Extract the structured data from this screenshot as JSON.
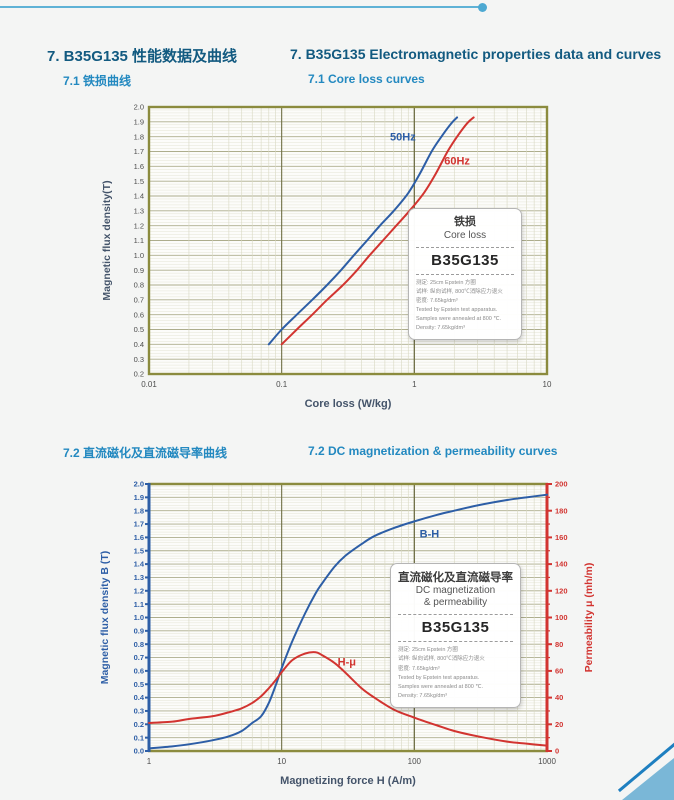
{
  "header": {
    "title_zh": "7. B35G135 性能数据及曲线",
    "title_en": "7. B35G135 Electromagnetic properties data and curves"
  },
  "section1": {
    "heading_zh": "7.1 铁损曲线",
    "heading_en": "7.1 Core loss curves"
  },
  "section2": {
    "heading_zh": "7.2 直流磁化及直流磁导率曲线",
    "heading_en": "7.2 DC magnetization & permeability curves"
  },
  "legend1": {
    "title_zh": "铁损",
    "title_en": "Core loss",
    "grade": "B35G135",
    "notes": [
      "测定: 25cm Epstein 方圈",
      "试样: 纵向试样, 800℃消除应力退火",
      "密度: 7.65kg/dm³",
      "Tested by Epstein test apparatus.",
      "Samples were annealed at 800 ℃.",
      "Density: 7.65kg/dm³"
    ]
  },
  "legend2": {
    "title_zh": "直流磁化及直流磁导率",
    "title_en1": "DC magnetization",
    "title_en2": "& permeability",
    "grade": "B35G135",
    "notes": [
      "测定: 25cm Epstein 方圈",
      "试样: 纵向试样, 800℃消除应力退火",
      "密度: 7.65kg/dm³",
      "Tested by Epstein test apparatus.",
      "Samples were annealed at 800 ℃.",
      "Density: 7.65kg/dm³"
    ]
  },
  "colors": {
    "accent_line": "#5fb2d6",
    "heading_dark": "#125a80",
    "heading_light": "#2389c0",
    "grid_border": "#8b8b3e",
    "blue_curve": "#2d5ea6",
    "red_curve": "#d23430",
    "axis_title_slate": "#44546a"
  },
  "chart_data": [
    {
      "type": "line",
      "title": "7.1 Core loss curves",
      "xlabel": "Core loss (W/kg)",
      "ylabel": "Magnetic flux density(T)",
      "x_scale": "log",
      "xlim": [
        0.01,
        10
      ],
      "x_ticks": [
        0.01,
        0.1,
        1,
        10
      ],
      "ylim": [
        0.2,
        2.0
      ],
      "y_tick_step": 0.1,
      "grid": true,
      "legend_position": "inside-right",
      "series": [
        {
          "name": "50Hz",
          "color": "#2d5ea6",
          "label_pos": {
            "x": 0.82,
            "y": 1.8
          },
          "points": [
            [
              0.08,
              0.4
            ],
            [
              0.1,
              0.5
            ],
            [
              0.13,
              0.6
            ],
            [
              0.17,
              0.7
            ],
            [
              0.22,
              0.8
            ],
            [
              0.28,
              0.9
            ],
            [
              0.35,
              1.0
            ],
            [
              0.44,
              1.1
            ],
            [
              0.55,
              1.2
            ],
            [
              0.7,
              1.3
            ],
            [
              0.9,
              1.42
            ],
            [
              1.1,
              1.55
            ],
            [
              1.35,
              1.7
            ],
            [
              1.6,
              1.8
            ],
            [
              1.9,
              1.89
            ],
            [
              2.1,
              1.93
            ]
          ]
        },
        {
          "name": "60Hz",
          "color": "#d23430",
          "label_pos": {
            "x": 2.1,
            "y": 1.64
          },
          "points": [
            [
              0.1,
              0.4
            ],
            [
              0.13,
              0.5
            ],
            [
              0.17,
              0.6
            ],
            [
              0.22,
              0.7
            ],
            [
              0.29,
              0.8
            ],
            [
              0.37,
              0.9
            ],
            [
              0.46,
              1.0
            ],
            [
              0.58,
              1.1
            ],
            [
              0.73,
              1.2
            ],
            [
              0.92,
              1.3
            ],
            [
              1.18,
              1.42
            ],
            [
              1.45,
              1.55
            ],
            [
              1.78,
              1.7
            ],
            [
              2.1,
              1.8
            ],
            [
              2.5,
              1.89
            ],
            [
              2.8,
              1.93
            ]
          ]
        }
      ]
    },
    {
      "type": "line",
      "title": "7.2 DC magnetization & permeability curves",
      "xlabel": "Magnetizing force H (A/m)",
      "ylabel_left": "Magnetic flux density B (T)",
      "ylabel_right": "Permeability μ (mh/m)",
      "x_scale": "log",
      "xlim": [
        1,
        1000
      ],
      "x_ticks": [
        1,
        10,
        100,
        1000
      ],
      "ylim_left": [
        0.0,
        2.0
      ],
      "y_tick_step_left": 0.1,
      "ylim_right": [
        0,
        200
      ],
      "y_tick_step_right": 20,
      "grid": true,
      "series": [
        {
          "name": "B-H",
          "axis": "left",
          "color": "#2d5ea6",
          "label_pos": {
            "x": 130,
            "y": 1.63
          },
          "points": [
            [
              1,
              0.02
            ],
            [
              1.5,
              0.035
            ],
            [
              2,
              0.05
            ],
            [
              3,
              0.08
            ],
            [
              4,
              0.11
            ],
            [
              5,
              0.15
            ],
            [
              6,
              0.21
            ],
            [
              7,
              0.26
            ],
            [
              8,
              0.36
            ],
            [
              9,
              0.49
            ],
            [
              10,
              0.62
            ],
            [
              12,
              0.82
            ],
            [
              15,
              1.03
            ],
            [
              18,
              1.18
            ],
            [
              20,
              1.25
            ],
            [
              25,
              1.38
            ],
            [
              30,
              1.46
            ],
            [
              40,
              1.55
            ],
            [
              50,
              1.61
            ],
            [
              70,
              1.67
            ],
            [
              100,
              1.72
            ],
            [
              150,
              1.77
            ],
            [
              200,
              1.8
            ],
            [
              300,
              1.84
            ],
            [
              500,
              1.88
            ],
            [
              700,
              1.9
            ],
            [
              1000,
              1.92
            ]
          ]
        },
        {
          "name": "H-μ",
          "axis": "right",
          "color": "#d23430",
          "label_pos": {
            "x": 31,
            "y": 67
          },
          "points": [
            [
              1,
              21
            ],
            [
              1.5,
              22
            ],
            [
              2,
              24
            ],
            [
              3,
              26
            ],
            [
              4,
              29
            ],
            [
              5,
              32
            ],
            [
              6,
              36
            ],
            [
              7,
              41
            ],
            [
              8,
              47
            ],
            [
              9,
              53
            ],
            [
              10,
              59
            ],
            [
              12,
              68
            ],
            [
              15,
              73
            ],
            [
              18,
              74
            ],
            [
              20,
              72
            ],
            [
              25,
              66
            ],
            [
              30,
              59
            ],
            [
              40,
              47
            ],
            [
              50,
              40
            ],
            [
              70,
              31
            ],
            [
              100,
              25
            ],
            [
              150,
              19
            ],
            [
              200,
              15
            ],
            [
              300,
              11
            ],
            [
              500,
              7
            ],
            [
              700,
              5.5
            ],
            [
              1000,
              4
            ]
          ]
        }
      ]
    }
  ]
}
